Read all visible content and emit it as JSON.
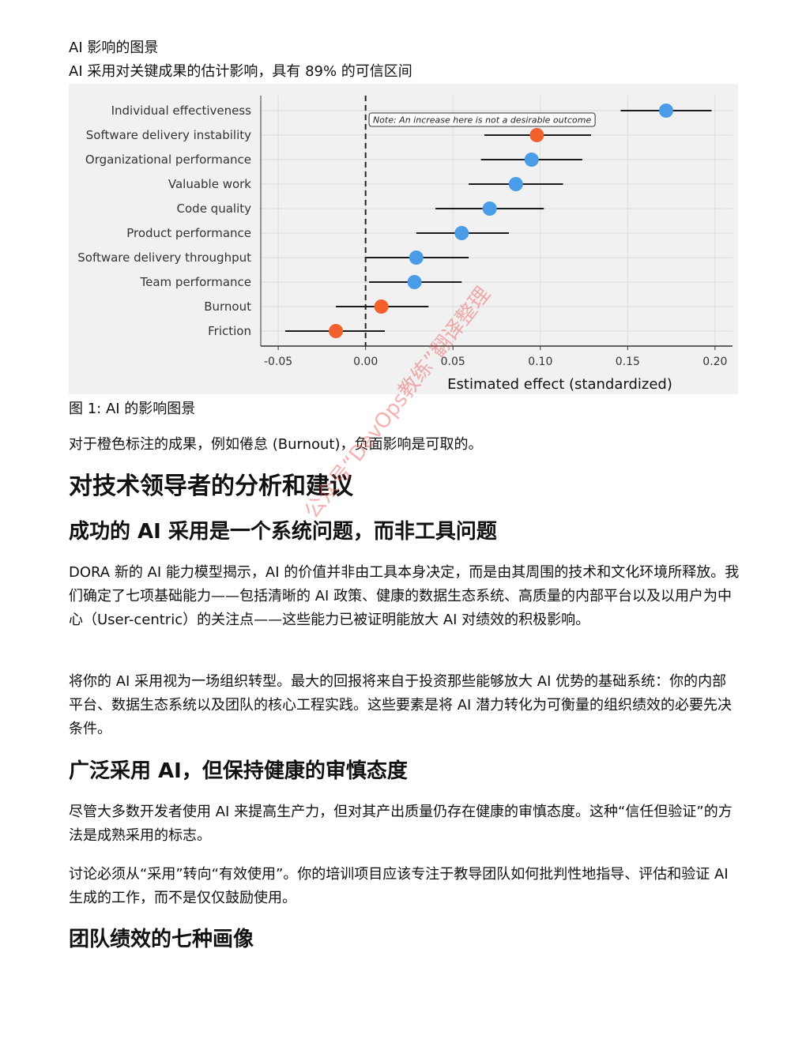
{
  "header": {
    "title": "AI 影响的图景",
    "subtitle": "AI 采用对关键成果的估计影响，具有 89% 的可信区间"
  },
  "chart_data": {
    "type": "forest",
    "xlabel": "Estimated effect (standardized)",
    "xlim": [
      -0.06,
      0.21
    ],
    "xticks": [
      -0.05,
      0.0,
      0.05,
      0.1,
      0.15,
      0.2
    ],
    "xtick_labels": [
      "-0.05",
      "0.00",
      "0.05",
      "0.10",
      "0.15",
      "0.20"
    ],
    "reference_line": 0.0,
    "annotation": "Note: An increase here is not a desirable outcome",
    "colors": {
      "desirable": "#4a9ce6",
      "undesirable": "#f2602d"
    },
    "points": [
      {
        "label": "Individual effectiveness",
        "estimate": 0.172,
        "lower": 0.146,
        "upper": 0.198,
        "undesirable": false
      },
      {
        "label": "Software delivery instability",
        "estimate": 0.098,
        "lower": 0.068,
        "upper": 0.129,
        "undesirable": true
      },
      {
        "label": "Organizational performance",
        "estimate": 0.095,
        "lower": 0.066,
        "upper": 0.124,
        "undesirable": false
      },
      {
        "label": "Valuable work",
        "estimate": 0.086,
        "lower": 0.059,
        "upper": 0.113,
        "undesirable": false
      },
      {
        "label": "Code quality",
        "estimate": 0.071,
        "lower": 0.04,
        "upper": 0.102,
        "undesirable": false
      },
      {
        "label": "Product performance",
        "estimate": 0.055,
        "lower": 0.029,
        "upper": 0.082,
        "undesirable": false
      },
      {
        "label": "Software delivery throughput",
        "estimate": 0.029,
        "lower": 0.0,
        "upper": 0.059,
        "undesirable": false
      },
      {
        "label": "Team performance",
        "estimate": 0.028,
        "lower": 0.002,
        "upper": 0.055,
        "undesirable": false
      },
      {
        "label": "Burnout",
        "estimate": 0.009,
        "lower": -0.017,
        "upper": 0.036,
        "undesirable": true
      },
      {
        "label": "Friction",
        "estimate": -0.017,
        "lower": -0.046,
        "upper": 0.011,
        "undesirable": true
      }
    ]
  },
  "caption": "图 1: AI 的影响图景",
  "note_paragraph": "对于橙色标注的成果，例如倦怠 (Burnout)，负面影响是可取的。",
  "section_title": "对技术领导者的分析和建议",
  "sections": [
    {
      "title": "成功的 AI 采用是一个系统问题，而非工具问题",
      "paragraphs": [
        "DORA 新的 AI 能力模型揭示，AI 的价值并非由工具本身决定，而是由其周围的技术和文化环境所释放。我们确定了七项基础能力——包括清晰的 AI 政策、健康的数据生态系统、高质量的内部平台以及以用户为中心（User-centric）的关注点——这些能力已被证明能放大 AI 对绩效的积极影响。",
        "将你的 AI 采用视为一场组织转型。最大的回报将来自于投资那些能够放大 AI 优势的基础系统：你的内部平台、数据生态系统以及团队的核心工程实践。这些要素是将 AI 潜力转化为可衡量的组织绩效的必要先决条件。"
      ]
    },
    {
      "title": "广泛采用 AI，但保持健康的审慎态度",
      "paragraphs": [
        "尽管大多数开发者使用 AI 来提高生产力，但对其产出质量仍存在健康的审慎态度。这种“信任但验证”的方法是成熟采用的标志。",
        "讨论必须从“采用”转向“有效使用”。你的培训项目应该专注于教导团队如何批判性地指导、评估和验证 AI 生成的工作，而不是仅仅鼓励使用。"
      ]
    },
    {
      "title": "团队绩效的七种画像",
      "paragraphs": []
    }
  ],
  "watermark": "公众号“DevOps教练”翻译整理"
}
